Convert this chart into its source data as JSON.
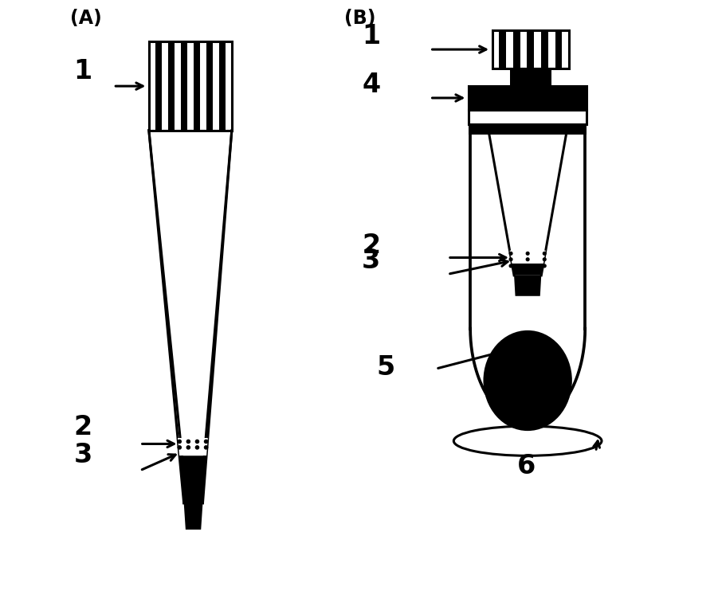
{
  "bg_color": "#ffffff",
  "line_color": "#000000",
  "label_A": "(A)",
  "label_B": "(B)",
  "figsize": [
    9.01,
    7.51
  ],
  "dpi": 100
}
